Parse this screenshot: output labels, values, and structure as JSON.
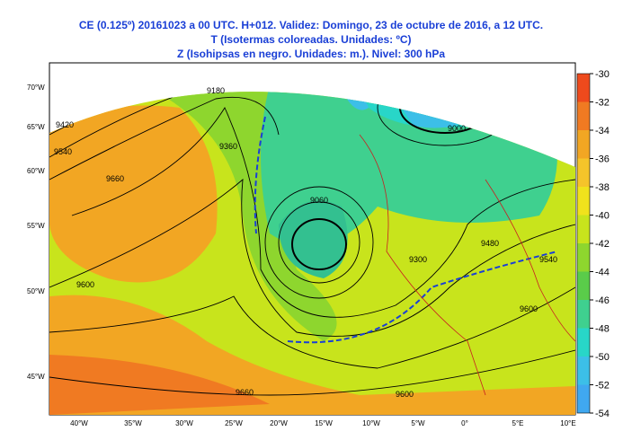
{
  "header": {
    "title_lines": [
      "CE (0.125º) 20161023 a 00 UTC.  H+012. Validez: Domingo, 23 de octubre de 2016,  a  12 UTC.",
      "T (Isotermas coloreadas. Unidades: ºC)",
      "Z (Isohipsas en negro. Unidades: m.).   Nivel: 300 hPa"
    ]
  },
  "colorbar": {
    "ticks": [
      -30,
      -32,
      -34,
      -36,
      -38,
      -40,
      -42,
      -44,
      -46,
      -48,
      -50,
      -52,
      -54
    ],
    "colors": [
      "#ee4a1c",
      "#f07a22",
      "#f2a623",
      "#f5c42a",
      "#f0e21c",
      "#c8e41c",
      "#8ed62e",
      "#5acc4a",
      "#3fd08f",
      "#28d6c8",
      "#3cbfe8",
      "#40a8f0"
    ]
  },
  "longitude_labels": [
    "40°W",
    "35°W",
    "30°W",
    "25°W",
    "20°W",
    "15°W",
    "10°W",
    "5°W",
    "0°",
    "5°E",
    "10°E"
  ],
  "latitude_labels": [
    "70°W",
    "65°W",
    "60°W",
    "55°W",
    "50°W",
    "45°W"
  ],
  "contour_labels": [
    "9420",
    "9540",
    "9660",
    "9180",
    "9360",
    "9060",
    "9000",
    "9300",
    "9480",
    "9540",
    "9600",
    "9660",
    "9600",
    "9600"
  ]
}
